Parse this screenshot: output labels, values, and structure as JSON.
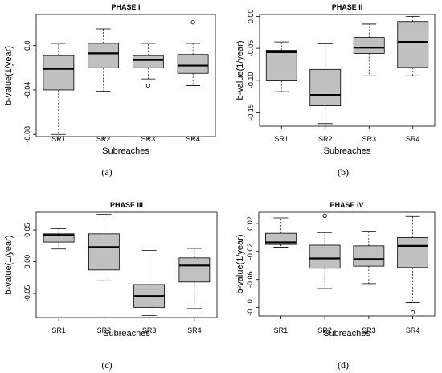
{
  "chart_data": [
    {
      "type": "boxplot",
      "title": "PHASE I",
      "panel_label": "(a)",
      "xlabel": "Subreaches",
      "ylabel": "b-value(1/year)",
      "categories": [
        "SR1",
        "SR2",
        "SR3",
        "SR4"
      ],
      "yticks": [
        0.0,
        -0.04,
        -0.08
      ],
      "ytick_labels": [
        "0.0",
        "-0.04",
        "-0.08"
      ],
      "ylim": [
        -0.082,
        0.028
      ],
      "boxes": [
        {
          "min": -0.08,
          "q1": -0.04,
          "median": -0.021,
          "q3": -0.009,
          "max": 0.002,
          "outliers": []
        },
        {
          "min": -0.041,
          "q1": -0.02,
          "median": -0.007,
          "q3": 0.002,
          "max": 0.015,
          "outliers": []
        },
        {
          "min": -0.03,
          "q1": -0.02,
          "median": -0.013,
          "q3": -0.009,
          "max": 0.002,
          "outliers": [
            -0.036
          ]
        },
        {
          "min": -0.036,
          "q1": -0.025,
          "median": -0.018,
          "q3": -0.008,
          "max": 0.002,
          "outliers": [
            0.021
          ]
        }
      ]
    },
    {
      "type": "boxplot",
      "title": "PHASE II",
      "panel_label": "(b)",
      "xlabel": "Subreaches",
      "ylabel": "b-value(1/year)",
      "categories": [
        "SR1",
        "SR2",
        "SR3",
        "SR4"
      ],
      "yticks": [
        0.0,
        -0.05,
        -0.1,
        -0.15
      ],
      "ytick_labels": [
        "0.00",
        "-0.05",
        "-0.10",
        "-0.15"
      ],
      "ylim": [
        -0.172,
        0.003
      ],
      "boxes": [
        {
          "min": -0.118,
          "q1": -0.101,
          "median": -0.056,
          "q3": -0.053,
          "max": -0.04,
          "outliers": []
        },
        {
          "min": -0.168,
          "q1": -0.14,
          "median": -0.123,
          "q3": -0.083,
          "max": -0.043,
          "outliers": []
        },
        {
          "min": -0.093,
          "q1": -0.058,
          "median": -0.049,
          "q3": -0.033,
          "max": -0.012,
          "outliers": []
        },
        {
          "min": -0.093,
          "q1": -0.08,
          "median": -0.04,
          "q3": -0.008,
          "max": 0.0,
          "outliers": []
        }
      ]
    },
    {
      "type": "boxplot",
      "title": "PHASE III",
      "panel_label": "(c)",
      "xlabel": "Subreaches",
      "ylabel": "b-value(1/year)",
      "categories": [
        "SR1",
        "SR2",
        "SR3",
        "SR4"
      ],
      "yticks": [
        0.05,
        0.0,
        -0.05
      ],
      "ytick_labels": [
        "0.05",
        "0.00",
        "-0.05"
      ],
      "ylim": [
        -0.088,
        0.078
      ],
      "boxes": [
        {
          "min": 0.02,
          "q1": 0.031,
          "median": 0.042,
          "q3": 0.044,
          "max": 0.052,
          "outliers": []
        },
        {
          "min": -0.03,
          "q1": -0.013,
          "median": 0.023,
          "q3": 0.044,
          "max": 0.075,
          "outliers": []
        },
        {
          "min": -0.085,
          "q1": -0.072,
          "median": -0.054,
          "q3": -0.036,
          "max": 0.018,
          "outliers": []
        },
        {
          "min": -0.074,
          "q1": -0.032,
          "median": -0.006,
          "q3": 0.006,
          "max": 0.021,
          "outliers": []
        }
      ]
    },
    {
      "type": "boxplot",
      "title": "PHASE IV",
      "panel_label": "(d)",
      "xlabel": "Subreaches",
      "ylabel": "b-value(1/year)",
      "categories": [
        "SR1",
        "SR2",
        "SR3",
        "SR4"
      ],
      "yticks": [
        0.02,
        -0.02,
        -0.06,
        -0.1
      ],
      "ytick_labels": [
        "0.02",
        "-0.02",
        "-0.06",
        "-0.10"
      ],
      "ylim": [
        -0.112,
        0.036
      ],
      "boxes": [
        {
          "min": -0.014,
          "q1": -0.01,
          "median": -0.007,
          "q3": 0.006,
          "max": 0.028,
          "outliers": []
        },
        {
          "min": -0.073,
          "q1": -0.044,
          "median": -0.03,
          "q3": -0.011,
          "max": 0.007,
          "outliers": [
            0.031
          ]
        },
        {
          "min": -0.066,
          "q1": -0.041,
          "median": -0.031,
          "q3": -0.012,
          "max": 0.009,
          "outliers": []
        },
        {
          "min": -0.093,
          "q1": -0.043,
          "median": -0.012,
          "q3": 0.0,
          "max": 0.03,
          "outliers": [
            -0.107
          ]
        }
      ]
    }
  ]
}
